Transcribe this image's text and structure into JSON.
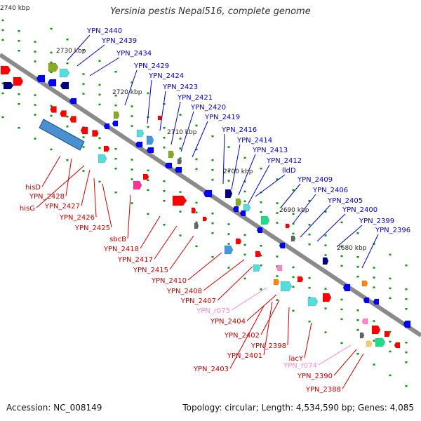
{
  "title": "Yersinia pestis Nepal516, complete genome",
  "footer": {
    "accession": "Accession: NC_008149",
    "topology": "Topology: circular; Length: 4,534,590 bp; Genes: 4,085"
  },
  "colors": {
    "backbone": "#8a8a8a",
    "forward_label": "#0000cc",
    "reverse_label": "#cc0000",
    "rna_label": "#ff88cc",
    "forward_gene": "#0000ff",
    "reverse_gene": "#ff0000",
    "tick_dots": "#009900"
  },
  "ticks": [
    "2740 kbp",
    "2730 kbp",
    "2720 kbp",
    "2710 kbp",
    "2700 kbp",
    "2690 kbp",
    "2680 kbp"
  ],
  "forward_labels": [
    "YPN_2440",
    "YPN_2439",
    "YPN_2434",
    "YPN_2429",
    "YPN_2424",
    "YPN_2423",
    "YPN_2421",
    "YPN_2420",
    "YPN_2419",
    "YPN_2416",
    "YPN_2414",
    "YPN_2413",
    "YPN_2412",
    "lldD",
    "YPN_2409",
    "YPN_2406",
    "YPN_2405",
    "YPN_2400",
    "YPN_2399",
    "YPN_2396"
  ],
  "reverse_labels": [
    "hisD",
    "YPN_2428",
    "hisG",
    "YPN_2427",
    "YPN_2426",
    "YPN_2425",
    "sbcB",
    "YPN_2418",
    "YPN_2417",
    "YPN_2415",
    "YPN_2410",
    "YPN_2408",
    "YPN_2407",
    "YPN_r075",
    "YPN_2404",
    "YPN_2402",
    "YPN_2398",
    "YPN_2401",
    "YPN_2403",
    "lacY",
    "YPN_r074",
    "YPN_2390",
    "YPN_2388"
  ],
  "rna_genes": [
    "YPN_r075",
    "YPN_r074"
  ]
}
